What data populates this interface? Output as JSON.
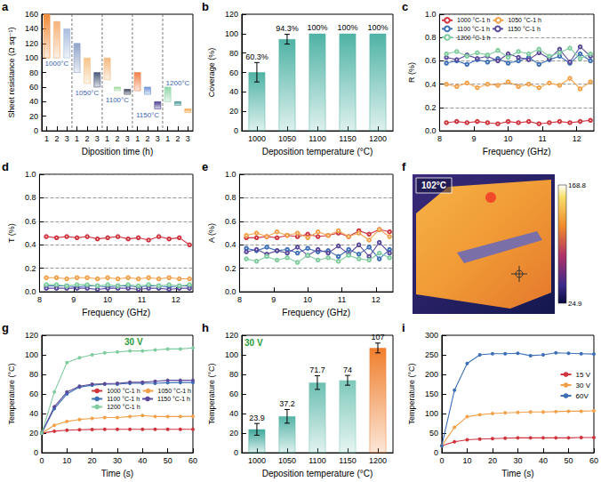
{
  "chart_data": [
    {
      "label": "a",
      "type": "range_bar",
      "y_label": "Sheet resistance (Ω sq⁻¹)",
      "x_label": "Diposition time (h)",
      "categories": [
        "1",
        "2",
        "3",
        "1",
        "2",
        "3",
        "1",
        "2",
        "3",
        "1",
        "2",
        "3",
        "1",
        "2",
        "3"
      ],
      "groups": [
        {
          "label": "1000°C",
          "label_y": 92,
          "label_color": "#3a62b0",
          "low": [
            100,
            100,
            100
          ],
          "high": [
            160,
            150,
            140
          ],
          "colors": [
            "#f08b3a",
            "#f6b27a",
            "#a9bde0"
          ]
        },
        {
          "label": "1050°C",
          "label_y": 52,
          "label_color": "#3a62b0",
          "low": [
            80,
            65,
            60
          ],
          "high": [
            120,
            100,
            80
          ],
          "colors": [
            "#8fa3c8",
            "#f6c48a",
            "#4a5a7a"
          ]
        },
        {
          "label": "1100°C",
          "label_y": 42,
          "label_color": "#3a62b0",
          "low": [
            70,
            55,
            50
          ],
          "high": [
            100,
            60,
            57
          ],
          "colors": [
            "#f4b97e",
            "#9fd79a",
            "#3a3f58"
          ]
        },
        {
          "label": "1150°C",
          "label_y": 22,
          "label_color": "#3a62b0",
          "low": [
            55,
            50,
            30
          ],
          "high": [
            80,
            60,
            40
          ],
          "colors": [
            "#f0804a",
            "#6f94d6",
            "#4a3f8f"
          ]
        },
        {
          "label": "1200°C",
          "label_y": 66,
          "label_color": "#3a62b0",
          "low": [
            40,
            35,
            25
          ],
          "high": [
            60,
            40,
            30
          ],
          "colors": [
            "#8fd6a8",
            "#3b8f8a",
            "#f2a54a"
          ]
        }
      ],
      "ylim": [
        0,
        160
      ],
      "yticks": [
        0,
        20,
        40,
        60,
        80,
        100,
        120,
        140,
        160
      ],
      "grid": false
    },
    {
      "label": "b",
      "type": "bar",
      "y_label": "Coverage (%)",
      "x_label": "Deposition temperature (°C)",
      "categories": [
        "1000",
        "1050",
        "1100",
        "1150",
        "1200"
      ],
      "values": [
        60.3,
        94.3,
        100,
        100,
        100
      ],
      "errors": [
        10,
        5,
        0,
        0,
        0
      ],
      "value_labels": [
        "60.3%",
        "94.3%",
        "100%",
        "100%",
        "100%"
      ],
      "data_labels": true,
      "color": "#4fb3a5",
      "ylim": [
        0,
        120
      ],
      "yticks": [
        0,
        20,
        40,
        60,
        80,
        100,
        120
      ],
      "grid": false
    },
    {
      "label": "c",
      "type": "line",
      "y_label": "R (%)",
      "x_label": "Frequency (GHz)",
      "x": [
        8.2,
        8.5,
        8.8,
        9.1,
        9.4,
        9.7,
        10.0,
        10.3,
        10.6,
        10.9,
        11.2,
        11.5,
        11.8,
        12.1,
        12.4
      ],
      "series": [
        {
          "name": "1000 °C-1 h",
          "color": "#d0343f",
          "values": [
            0.07,
            0.08,
            0.07,
            0.08,
            0.07,
            0.06,
            0.08,
            0.07,
            0.08,
            0.06,
            0.07,
            0.08,
            0.07,
            0.08,
            0.09
          ]
        },
        {
          "name": "1050 °C-1 h",
          "color": "#f2a14a",
          "values": [
            0.4,
            0.38,
            0.41,
            0.37,
            0.4,
            0.39,
            0.42,
            0.38,
            0.4,
            0.37,
            0.41,
            0.39,
            0.45,
            0.36,
            0.42
          ]
        },
        {
          "name": "1100 °C-1 h",
          "color": "#3d6fb6",
          "values": [
            0.58,
            0.6,
            0.57,
            0.61,
            0.59,
            0.62,
            0.58,
            0.6,
            0.63,
            0.57,
            0.61,
            0.64,
            0.58,
            0.66,
            0.6
          ]
        },
        {
          "name": "1150 °C-1 h",
          "color": "#5b4a9c",
          "values": [
            0.63,
            0.61,
            0.65,
            0.62,
            0.64,
            0.6,
            0.66,
            0.63,
            0.61,
            0.67,
            0.62,
            0.7,
            0.59,
            0.72,
            0.64
          ]
        },
        {
          "name": "1200 °C-1 h",
          "color": "#7fcc9e",
          "values": [
            0.66,
            0.68,
            0.64,
            0.67,
            0.65,
            0.69,
            0.63,
            0.68,
            0.66,
            0.7,
            0.64,
            0.67,
            0.71,
            0.62,
            0.66
          ]
        }
      ],
      "marker": "open_circle",
      "legend": "top-left",
      "xlim": [
        8,
        12.5
      ],
      "xticks": [
        8,
        9,
        10,
        11,
        12
      ],
      "ylim": [
        0,
        1
      ],
      "yticks": [
        {
          "value": 0,
          "label": "0.0"
        },
        0.2,
        0.4,
        0.6,
        0.8,
        {
          "value": 1,
          "label": "1.0"
        }
      ],
      "grid": true
    },
    {
      "label": "d",
      "type": "line",
      "y_label": "T (%)",
      "x_label": "Frequency (GHz)",
      "x": [
        8.2,
        8.5,
        8.8,
        9.1,
        9.4,
        9.7,
        10.0,
        10.3,
        10.6,
        10.9,
        11.2,
        11.5,
        11.8,
        12.1,
        12.4
      ],
      "series": [
        {
          "color": "#d0343f",
          "values": [
            0.47,
            0.46,
            0.47,
            0.46,
            0.47,
            0.45,
            0.46,
            0.47,
            0.45,
            0.46,
            0.44,
            0.47,
            0.45,
            0.46,
            0.4
          ]
        },
        {
          "color": "#f2a14a",
          "values": [
            0.12,
            0.12,
            0.11,
            0.12,
            0.12,
            0.11,
            0.12,
            0.11,
            0.12,
            0.11,
            0.12,
            0.11,
            0.12,
            0.11,
            0.11
          ]
        },
        {
          "color": "#3d6fb6",
          "values": [
            0.05,
            0.05,
            0.05,
            0.04,
            0.05,
            0.05,
            0.04,
            0.05,
            0.05,
            0.04,
            0.05,
            0.05,
            0.04,
            0.05,
            0.05
          ]
        },
        {
          "color": "#5b4a9c",
          "values": [
            0.03,
            0.03,
            0.03,
            0.03,
            0.03,
            0.02,
            0.03,
            0.03,
            0.03,
            0.02,
            0.03,
            0.03,
            0.02,
            0.03,
            0.03
          ]
        },
        {
          "color": "#7fcc9e",
          "values": [
            0.06,
            0.06,
            0.05,
            0.06,
            0.06,
            0.05,
            0.06,
            0.05,
            0.06,
            0.05,
            0.06,
            0.05,
            0.06,
            0.05,
            0.06
          ]
        }
      ],
      "marker": "open_circle",
      "xlim": [
        8,
        12.5
      ],
      "xticks": [
        8,
        9,
        10,
        11,
        12
      ],
      "ylim": [
        0,
        1
      ],
      "yticks": [
        {
          "value": 0,
          "label": "0.0"
        },
        0.2,
        0.4,
        0.6,
        0.8,
        {
          "value": 1,
          "label": "1.0"
        }
      ],
      "grid": true
    },
    {
      "label": "e",
      "type": "line",
      "y_label": "A (%)",
      "x_label": "Frequency (GHz)",
      "x": [
        8.2,
        8.5,
        8.8,
        9.1,
        9.4,
        9.7,
        10.0,
        10.3,
        10.6,
        10.9,
        11.2,
        11.5,
        11.8,
        12.1,
        12.4
      ],
      "series": [
        {
          "color": "#d0343f",
          "values": [
            0.46,
            0.46,
            0.47,
            0.46,
            0.48,
            0.47,
            0.49,
            0.47,
            0.48,
            0.5,
            0.47,
            0.52,
            0.49,
            0.53,
            0.51
          ]
        },
        {
          "color": "#f2a14a",
          "values": [
            0.48,
            0.5,
            0.47,
            0.51,
            0.48,
            0.5,
            0.46,
            0.51,
            0.48,
            0.52,
            0.47,
            0.5,
            0.44,
            0.53,
            0.47
          ]
        },
        {
          "color": "#3d6fb6",
          "values": [
            0.37,
            0.35,
            0.38,
            0.35,
            0.36,
            0.33,
            0.37,
            0.34,
            0.35,
            0.3,
            0.36,
            0.32,
            0.38,
            0.28,
            0.36
          ]
        },
        {
          "color": "#5b4a9c",
          "values": [
            0.34,
            0.36,
            0.32,
            0.35,
            0.33,
            0.38,
            0.31,
            0.36,
            0.33,
            0.39,
            0.32,
            0.4,
            0.3,
            0.42,
            0.33
          ]
        },
        {
          "color": "#7fcc9e",
          "values": [
            0.28,
            0.26,
            0.3,
            0.27,
            0.29,
            0.25,
            0.31,
            0.27,
            0.29,
            0.26,
            0.31,
            0.28,
            0.27,
            0.33,
            0.29
          ]
        }
      ],
      "marker": "open_circle",
      "xlim": [
        8,
        12.5
      ],
      "xticks": [
        8,
        9,
        10,
        11,
        12
      ],
      "ylim": [
        0,
        1
      ],
      "yticks": [
        {
          "value": 0,
          "label": "0.0"
        },
        0.2,
        0.4,
        0.6,
        0.8,
        {
          "value": 1,
          "label": "1.0"
        }
      ],
      "grid": true
    },
    {
      "label": "f",
      "type": "image",
      "annotation": {
        "text": "102°C",
        "color": "#ffffff"
      },
      "colorbar": {
        "range": [
          24.9,
          168.8
        ],
        "ticks": [
          24.9,
          168.8
        ]
      }
    },
    {
      "label": "g",
      "type": "line",
      "y_label": "Temperature (°C)",
      "x_label": "Time (s)",
      "x": [
        0,
        5,
        10,
        15,
        20,
        25,
        30,
        35,
        40,
        45,
        50,
        55,
        60
      ],
      "series": [
        {
          "name": "1000 °C-1 h",
          "color": "#d0343f",
          "values": [
            20,
            22,
            23,
            23.5,
            23.8,
            23.9,
            23.9,
            23.9,
            23.9,
            23.9,
            23.9,
            23.9,
            23.9
          ]
        },
        {
          "name": "1050 °C-1 h",
          "color": "#f2a14a",
          "values": [
            20,
            28,
            32,
            34,
            35,
            36,
            36,
            37,
            38,
            37,
            37,
            37,
            37.2
          ]
        },
        {
          "name": "1100 °C-1 h",
          "color": "#3d6fb6",
          "values": [
            20,
            45,
            60,
            67,
            69,
            70,
            70,
            71,
            71,
            71,
            71.5,
            71.7,
            71.7
          ]
        },
        {
          "name": "1150 °C-1 h",
          "color": "#5b4a9c",
          "values": [
            20,
            47,
            62,
            68,
            70,
            70.5,
            71,
            72,
            72,
            73,
            74,
            74,
            74
          ]
        },
        {
          "name": "1200 °C-1 h",
          "color": "#7fcc9e",
          "values": [
            20,
            62,
            92,
            97,
            100,
            102,
            103,
            104,
            104,
            105,
            106,
            106,
            107
          ]
        }
      ],
      "marker": "circle",
      "legend": "bottom-right",
      "annotation": {
        "text": "30 V",
        "color": "#2e9b3a"
      },
      "xlim": [
        0,
        60
      ],
      "xticks": [
        0,
        10,
        20,
        30,
        40,
        50,
        60
      ],
      "ylim": [
        0,
        120
      ],
      "yticks": [
        0,
        20,
        40,
        60,
        80,
        100,
        120
      ],
      "grid": false
    },
    {
      "label": "h",
      "type": "bar",
      "y_label": "Temperature (°C)",
      "x_label": "Deposition temperature (°C)",
      "categories": [
        "1000",
        "1050",
        "1100",
        "1150",
        "1200"
      ],
      "values": [
        23.9,
        37.2,
        71.7,
        74,
        107
      ],
      "errors": [
        6,
        7,
        7,
        5,
        5
      ],
      "data_labels": true,
      "colors": [
        "#3fa89b",
        "#56b5a7",
        "#6cbfb2",
        "#7fc9bb",
        "#f07f2e"
      ],
      "annotation": {
        "text": "30 V",
        "color": "#2e9b3a"
      },
      "ylim": [
        0,
        120
      ],
      "yticks": [
        0,
        20,
        40,
        60,
        80,
        100,
        120
      ],
      "grid": false
    },
    {
      "label": "i",
      "type": "line",
      "y_label": "Temperature (°C)",
      "x_label": "Time (s)",
      "x": [
        0,
        5,
        10,
        15,
        20,
        25,
        30,
        35,
        40,
        45,
        50,
        55,
        60
      ],
      "series": [
        {
          "name": "15 V",
          "color": "#d0343f",
          "values": [
            18,
            28,
            33,
            35,
            36,
            37,
            38,
            38,
            38,
            38,
            38,
            39,
            39
          ]
        },
        {
          "name": "30 V",
          "color": "#f2a14a",
          "values": [
            18,
            65,
            92,
            97,
            100,
            102,
            103,
            104,
            104,
            105,
            106,
            106,
            107
          ]
        },
        {
          "name": "60V",
          "color": "#3d6fb6",
          "values": [
            18,
            160,
            228,
            250,
            253,
            253,
            254,
            248,
            250,
            255,
            254,
            253,
            252
          ]
        }
      ],
      "marker": "circle",
      "legend": "right",
      "xlim": [
        0,
        60
      ],
      "xticks": [
        0,
        10,
        20,
        30,
        40,
        50,
        60
      ],
      "ylim": [
        0,
        300
      ],
      "yticks": [
        0,
        50,
        100,
        150,
        200,
        250,
        300
      ],
      "grid": false
    }
  ]
}
